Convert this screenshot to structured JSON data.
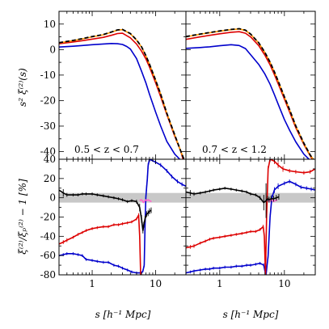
{
  "chart_data": [
    {
      "panel": "top-left",
      "type": "line",
      "annotation": "0.5 < z < 0.7",
      "ylabel": "s² ξ⁽²⁾(s)",
      "xlabel": "",
      "xscale": "log",
      "xlim": [
        0.3,
        30
      ],
      "ylim": [
        -43,
        15
      ],
      "yticks": [
        -40,
        -30,
        -20,
        -10,
        0,
        10
      ],
      "series": [
        {
          "color": "#0000cc",
          "style": "solid",
          "x": [
            0.3,
            0.5,
            0.7,
            1,
            1.5,
            2,
            2.5,
            3,
            3.5,
            4,
            5,
            6,
            7,
            8,
            10,
            12,
            15,
            20,
            24
          ],
          "y": [
            1.0,
            1.3,
            1.6,
            1.9,
            2.2,
            2.4,
            2.3,
            2.0,
            1.2,
            0.2,
            -3.5,
            -8.5,
            -13,
            -17.5,
            -24.5,
            -30,
            -36,
            -41,
            -43
          ]
        },
        {
          "color": "#dd0000",
          "style": "solid",
          "x": [
            0.3,
            0.5,
            0.7,
            1,
            1.5,
            2,
            2.5,
            3,
            4,
            5,
            6,
            7,
            8,
            10,
            12,
            15,
            20,
            25,
            27
          ],
          "y": [
            2.3,
            3.0,
            3.5,
            4.1,
            4.8,
            5.6,
            6.3,
            6.4,
            4.6,
            2.2,
            -0.6,
            -3.6,
            -6.8,
            -13,
            -18.5,
            -25.5,
            -34,
            -40,
            -43
          ]
        },
        {
          "color": "#ff9900",
          "style": "solid",
          "x": [
            0.3,
            0.5,
            0.7,
            1,
            1.5,
            2,
            2.5,
            3,
            4,
            5,
            6,
            7,
            8,
            10,
            12,
            15,
            20,
            25,
            28
          ],
          "y": [
            2.6,
            3.5,
            4.2,
            5.0,
            5.8,
            6.8,
            7.6,
            7.8,
            6.2,
            3.7,
            1.0,
            -2.4,
            -5.8,
            -12,
            -17.5,
            -25,
            -33.5,
            -40,
            -43
          ]
        },
        {
          "color": "#000000",
          "style": "dashed",
          "x": [
            0.3,
            0.5,
            0.7,
            1,
            1.5,
            2,
            2.5,
            3,
            4,
            5,
            6,
            7,
            8,
            10,
            12,
            15,
            20,
            25,
            28
          ],
          "y": [
            2.7,
            3.6,
            4.3,
            5.1,
            5.9,
            6.9,
            7.7,
            7.9,
            6.3,
            3.8,
            1.1,
            -2.3,
            -5.7,
            -12,
            -17.5,
            -25,
            -33.5,
            -40,
            -43
          ]
        }
      ]
    },
    {
      "panel": "top-right",
      "type": "line",
      "annotation": "0.7 < z < 1.2",
      "xscale": "log",
      "xlim": [
        0.3,
        30
      ],
      "ylim": [
        -43,
        15
      ],
      "series": [
        {
          "color": "#0000cc",
          "style": "solid",
          "x": [
            0.3,
            0.5,
            0.7,
            1,
            1.5,
            2,
            2.5,
            3,
            4,
            5,
            6,
            7,
            8,
            10,
            12,
            15,
            20,
            24
          ],
          "y": [
            0.5,
            0.8,
            1.1,
            1.5,
            1.9,
            1.6,
            0.4,
            -2.0,
            -5.8,
            -9.6,
            -13.6,
            -17.6,
            -21.4,
            -27.4,
            -31.6,
            -36.2,
            -41,
            -43
          ]
        },
        {
          "color": "#dd0000",
          "style": "solid",
          "x": [
            0.3,
            0.5,
            0.7,
            1,
            1.5,
            2,
            2.5,
            3,
            4,
            5,
            6,
            7,
            8,
            10,
            12,
            15,
            20,
            25,
            27
          ],
          "y": [
            4.0,
            5.0,
            5.6,
            6.2,
            6.8,
            7.0,
            6.4,
            5.0,
            1.6,
            -2.2,
            -6.0,
            -9.8,
            -13.4,
            -19.4,
            -24.4,
            -30.6,
            -37.2,
            -41.6,
            -43
          ]
        },
        {
          "color": "#ff9900",
          "style": "solid",
          "x": [
            0.3,
            0.5,
            0.7,
            1,
            1.5,
            2,
            2.5,
            3,
            4,
            5,
            6,
            7,
            8,
            10,
            12,
            15,
            20,
            25,
            28
          ],
          "y": [
            5.0,
            6.0,
            6.6,
            7.2,
            7.8,
            8.1,
            7.5,
            6.0,
            2.6,
            -1.2,
            -5.0,
            -8.8,
            -12.4,
            -18.6,
            -23.6,
            -30,
            -36.8,
            -41.4,
            -43
          ]
        },
        {
          "color": "#000000",
          "style": "dashed",
          "x": [
            0.3,
            0.5,
            0.7,
            1,
            1.5,
            2,
            2.5,
            3,
            4,
            5,
            6,
            7,
            8,
            10,
            12,
            15,
            20,
            25,
            28
          ],
          "y": [
            5.1,
            6.1,
            6.7,
            7.3,
            7.9,
            8.2,
            7.6,
            6.1,
            2.7,
            -1.1,
            -4.9,
            -8.7,
            -12.3,
            -18.5,
            -23.5,
            -29.9,
            -36.7,
            -41.3,
            -43
          ]
        }
      ]
    },
    {
      "panel": "bottom-left",
      "type": "line",
      "ylabel": "ξ⁽²⁾/ξₚ⁽²⁾ − 1 [%]",
      "xlabel": "s [h⁻¹ Mpc]",
      "xscale": "log",
      "xlim": [
        0.3,
        30
      ],
      "ylim": [
        -80,
        40
      ],
      "yticks": [
        -80,
        -60,
        -40,
        -20,
        0,
        20,
        40
      ],
      "xticks": [
        1,
        10
      ],
      "shaded_band": [
        -5,
        5
      ],
      "series": [
        {
          "color": "#0000cc",
          "errorbars": true,
          "x": [
            0.3,
            0.35,
            0.4,
            0.5,
            0.6,
            0.7,
            0.8,
            1.0,
            1.2,
            1.5,
            1.8,
            2.2,
            2.6,
            3.0,
            3.6,
            4.2,
            5.0,
            5.7,
            6.0,
            6.3,
            6.6,
            6.8,
            7.0,
            7.2,
            7.4,
            7.6,
            8.0,
            10,
            12,
            15,
            18,
            22,
            26,
            30
          ],
          "y": [
            -60,
            -59,
            -58,
            -58,
            -59,
            -60,
            -64,
            -65,
            -66,
            -67,
            -67,
            -70,
            -71,
            -73,
            -75,
            -77,
            -78,
            -78,
            -78,
            -76,
            -70,
            -30,
            0,
            10,
            20,
            33,
            40,
            37,
            34,
            28,
            22,
            17,
            14,
            12
          ],
          "err": [
            1.5,
            1.5,
            1.5,
            1.5,
            1.5,
            1.5,
            1.5,
            1.5,
            1.5,
            1.5,
            1.5,
            1.5,
            1.5,
            1.5,
            1.5,
            1.5,
            1.5,
            1.5,
            1.5,
            1.5,
            2,
            3,
            3,
            3,
            3,
            3,
            3,
            2,
            2,
            2,
            2,
            2,
            2,
            2
          ]
        },
        {
          "color": "#dd0000",
          "errorbars": true,
          "x": [
            0.3,
            0.35,
            0.4,
            0.5,
            0.6,
            0.7,
            0.8,
            1.0,
            1.2,
            1.5,
            1.8,
            2.2,
            2.6,
            3.0,
            3.6,
            4.2,
            5.0,
            5.4,
            5.6,
            5.8
          ],
          "y": [
            -48,
            -46,
            -44,
            -41,
            -38,
            -36,
            -34,
            -32,
            -31,
            -30,
            -30,
            -28,
            -28,
            -27,
            -26,
            -25,
            -22,
            -18,
            -40,
            -80
          ],
          "err": [
            2,
            2,
            2,
            1.5,
            1.5,
            1.5,
            1.5,
            1.5,
            1.5,
            1.5,
            1.5,
            1.5,
            1.5,
            1.5,
            1.5,
            1.5,
            1.5,
            2,
            3,
            3
          ]
        },
        {
          "color": "#ff66cc",
          "errorbars": false,
          "x": [
            5.6,
            5.9,
            6.2,
            6.4,
            6.6,
            6.9,
            7.2,
            7.6,
            8.0,
            8.6
          ],
          "y": [
            -3,
            -2,
            -3,
            -5,
            -4,
            -2,
            -3,
            -2,
            -3,
            -4
          ]
        },
        {
          "color": "#000000",
          "errorbars": true,
          "x": [
            0.3,
            0.35,
            0.4,
            0.5,
            0.6,
            0.7,
            0.8,
            1.0,
            1.2,
            1.5,
            1.8,
            2.2,
            2.6,
            3.0,
            3.6,
            4.2,
            5.0,
            5.6,
            6.0,
            6.3,
            6.5,
            6.8,
            7.2,
            7.6,
            8.0,
            8.5
          ],
          "y": [
            8,
            5,
            3,
            3,
            3,
            4,
            4,
            4,
            3,
            2,
            1,
            0,
            -1,
            -2,
            -4,
            -3,
            -4,
            -10,
            -22,
            -34,
            -28,
            -22,
            -17,
            -16,
            -14,
            -13
          ],
          "err": [
            6,
            4,
            2,
            1.5,
            1.5,
            1.5,
            1.5,
            1.5,
            1.5,
            1.5,
            1.5,
            1.5,
            1.5,
            1.5,
            1.5,
            1.5,
            2,
            4,
            4,
            3,
            3,
            3,
            3,
            3,
            3,
            3
          ]
        }
      ]
    },
    {
      "panel": "bottom-right",
      "type": "line",
      "xlabel": "s [h⁻¹ Mpc]",
      "xscale": "log",
      "xlim": [
        0.3,
        30
      ],
      "ylim": [
        -80,
        40
      ],
      "xticks": [
        1,
        10
      ],
      "shaded_band": [
        -5,
        5
      ],
      "series": [
        {
          "color": "#0000cc",
          "errorbars": true,
          "x": [
            0.3,
            0.35,
            0.4,
            0.5,
            0.6,
            0.7,
            0.8,
            1.0,
            1.2,
            1.5,
            1.8,
            2.2,
            2.6,
            3.0,
            3.6,
            4.2,
            4.8,
            5.0,
            5.2,
            5.6,
            6.0,
            6.4,
            7.0,
            8.0,
            10,
            12,
            15,
            18,
            22,
            26,
            30
          ],
          "y": [
            -78,
            -77,
            -76,
            -75,
            -74,
            -74,
            -73,
            -73,
            -72,
            -72,
            -71,
            -71,
            -70,
            -70,
            -69,
            -68,
            -70,
            -76,
            -80,
            -60,
            -20,
            0,
            8,
            12,
            15,
            17,
            14,
            11,
            10,
            9,
            8
          ],
          "err": [
            1.5,
            1.5,
            1.5,
            1.5,
            1.5,
            1.5,
            1.5,
            1.5,
            1.5,
            1.5,
            1.5,
            1.5,
            1.5,
            1.5,
            1.5,
            1.5,
            2,
            2,
            2,
            3,
            3,
            3,
            3,
            3,
            2,
            2,
            2,
            2,
            2,
            2,
            2
          ]
        },
        {
          "color": "#dd0000",
          "errorbars": true,
          "x": [
            0.3,
            0.35,
            0.4,
            0.5,
            0.6,
            0.7,
            0.8,
            1.0,
            1.2,
            1.5,
            1.8,
            2.2,
            2.6,
            3.0,
            3.6,
            4.2,
            4.7,
            4.9,
            5.1,
            5.3,
            5.6,
            6.0,
            7.0,
            8.0,
            9.5,
            12,
            15,
            20,
            25,
            30
          ],
          "y": [
            -52,
            -51,
            -50,
            -47,
            -45,
            -43,
            -42,
            -41,
            -40,
            -39,
            -38,
            -37,
            -36,
            -35,
            -35,
            -33,
            -30,
            -40,
            -80,
            -20,
            30,
            40,
            38,
            34,
            30,
            28,
            27,
            26,
            27,
            30
          ],
          "err": [
            2,
            2,
            2,
            1.5,
            1.5,
            1.5,
            1.5,
            1.5,
            1.5,
            1.5,
            1.5,
            1.5,
            1.5,
            1.5,
            1.5,
            1.5,
            2,
            3,
            3,
            3,
            3,
            3,
            3,
            3,
            3,
            2,
            2,
            2,
            2,
            2
          ]
        },
        {
          "color": "#ff66cc",
          "errorbars": false,
          "x": [
            5.3,
            5.6,
            5.9,
            6.2,
            6.5,
            6.8,
            7.2,
            7.8
          ],
          "y": [
            -3,
            -2,
            -4,
            -3,
            -2,
            -4,
            -3,
            -2
          ]
        },
        {
          "color": "#000000",
          "errorbars": true,
          "x": [
            0.3,
            0.35,
            0.4,
            0.5,
            0.6,
            0.7,
            0.8,
            1.0,
            1.2,
            1.5,
            1.8,
            2.2,
            2.6,
            3.0,
            3.6,
            4.2,
            4.8,
            5.2,
            5.5,
            5.8,
            6.2,
            6.8,
            7.5,
            8.2
          ],
          "y": [
            6,
            5,
            4,
            5,
            6,
            7,
            8,
            9,
            10,
            9,
            8,
            7,
            6,
            4,
            3,
            0,
            -5,
            -3,
            -1,
            -2,
            -1,
            -1,
            0,
            1
          ],
          "err": [
            4,
            3,
            2,
            1.5,
            1.5,
            1.5,
            1.5,
            1.5,
            1.5,
            1.5,
            1.5,
            1.5,
            1.5,
            1.5,
            1.5,
            2,
            8,
            18,
            3,
            3,
            3,
            3,
            3,
            3
          ]
        }
      ]
    }
  ]
}
